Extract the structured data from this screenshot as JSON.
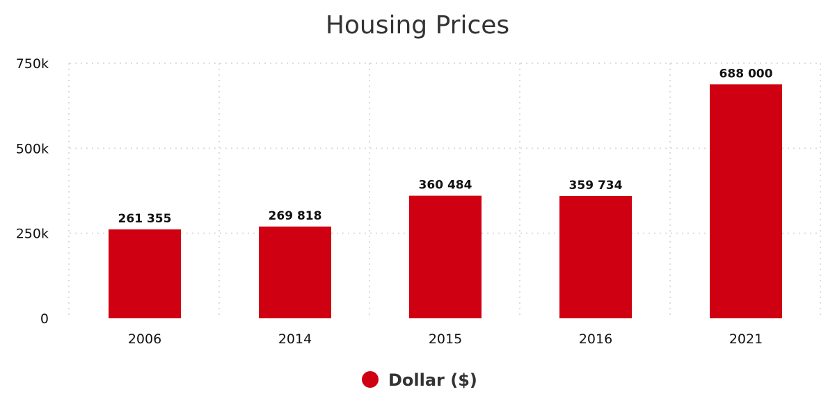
{
  "chart_data": {
    "type": "bar",
    "title": "Housing Prices",
    "categories": [
      "2006",
      "2014",
      "2015",
      "2016",
      "2021"
    ],
    "series": [
      {
        "name": "Dollar ($)",
        "values": [
          261355,
          269818,
          360484,
          359734,
          688000
        ],
        "data_labels": [
          "261 355",
          "269 818",
          "360 484",
          "359 734",
          "688 000"
        ],
        "color": "#cf0011"
      }
    ],
    "ylim": [
      0,
      750000
    ],
    "yticks": [
      0,
      250000,
      500000,
      750000
    ],
    "ytick_labels": [
      "0",
      "250k",
      "500k",
      "750k"
    ],
    "xlabel": "",
    "ylabel": "",
    "grid": true,
    "legend_position": "bottom-center"
  }
}
